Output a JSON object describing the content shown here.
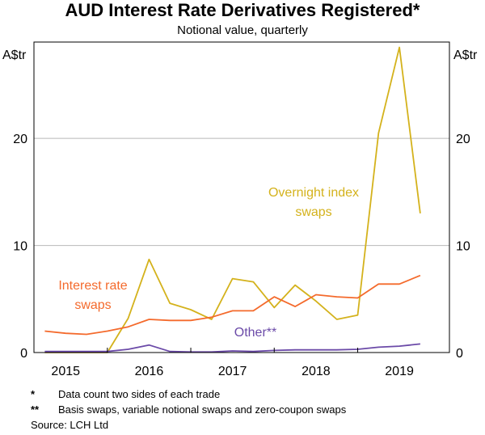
{
  "header": {
    "title": "AUD Interest Rate Derivatives Registered*",
    "subtitle": "Notional value, quarterly"
  },
  "footnotes": [
    {
      "mark": "*",
      "text": "Data count two sides of each trade"
    },
    {
      "mark": "**",
      "text": "Basis swaps, variable notional swaps and zero-coupon swaps"
    }
  ],
  "source": "Source:   LCH Ltd",
  "chart_data": {
    "type": "line",
    "y_unit_left": "A$tr",
    "y_unit_right": "A$tr",
    "ylim": [
      0,
      29
    ],
    "y_ticks": [
      0,
      10,
      20
    ],
    "x_range": [
      2014.62,
      2019.6
    ],
    "x_tick_labels": [
      "2015",
      "2016",
      "2017",
      "2018",
      "2019"
    ],
    "x_tick_positions": [
      2015.0,
      2016.0,
      2017.0,
      2018.0,
      2019.0
    ],
    "x_tick_marks": [
      2015.5,
      2016.5,
      2017.5,
      2018.5
    ],
    "grid": true,
    "series": [
      {
        "name": "Overnight index swaps",
        "label_lines": [
          "Overnight index",
          "swaps"
        ],
        "color": "#d4b21c",
        "x": [
          2014.75,
          2015.0,
          2015.25,
          2015.5,
          2015.75,
          2016.0,
          2016.25,
          2016.5,
          2016.75,
          2017.0,
          2017.25,
          2017.5,
          2017.75,
          2018.0,
          2018.25,
          2018.5,
          2018.75,
          2019.0,
          2019.25
        ],
        "values": [
          0,
          0,
          0,
          0,
          3.2,
          8.7,
          4.6,
          4.0,
          3.1,
          6.9,
          6.6,
          4.2,
          6.3,
          4.8,
          3.1,
          3.5,
          20.5,
          28.5,
          13.0
        ]
      },
      {
        "name": "Interest rate swaps",
        "label_lines": [
          "Interest rate",
          "swaps"
        ],
        "color": "#f46a2c",
        "x": [
          2014.75,
          2015.0,
          2015.25,
          2015.5,
          2015.75,
          2016.0,
          2016.25,
          2016.5,
          2016.75,
          2017.0,
          2017.25,
          2017.5,
          2017.75,
          2018.0,
          2018.25,
          2018.5,
          2018.75,
          2019.0,
          2019.25
        ],
        "values": [
          2.0,
          1.8,
          1.7,
          2.0,
          2.4,
          3.1,
          3.0,
          3.0,
          3.3,
          3.9,
          3.9,
          5.2,
          4.3,
          5.4,
          5.2,
          5.1,
          6.4,
          6.4,
          7.2
        ]
      },
      {
        "name": "Other**",
        "label_lines": [
          "Other**"
        ],
        "color": "#6b4aa8",
        "x": [
          2014.75,
          2015.0,
          2015.25,
          2015.5,
          2015.75,
          2016.0,
          2016.25,
          2016.5,
          2016.75,
          2017.0,
          2017.25,
          2017.5,
          2017.75,
          2018.0,
          2018.25,
          2018.5,
          2018.75,
          2019.0,
          2019.25
        ],
        "values": [
          0.1,
          0.1,
          0.1,
          0.1,
          0.3,
          0.7,
          0.1,
          0.05,
          0.05,
          0.15,
          0.1,
          0.2,
          0.25,
          0.25,
          0.25,
          0.3,
          0.5,
          0.6,
          0.8
        ]
      }
    ]
  }
}
